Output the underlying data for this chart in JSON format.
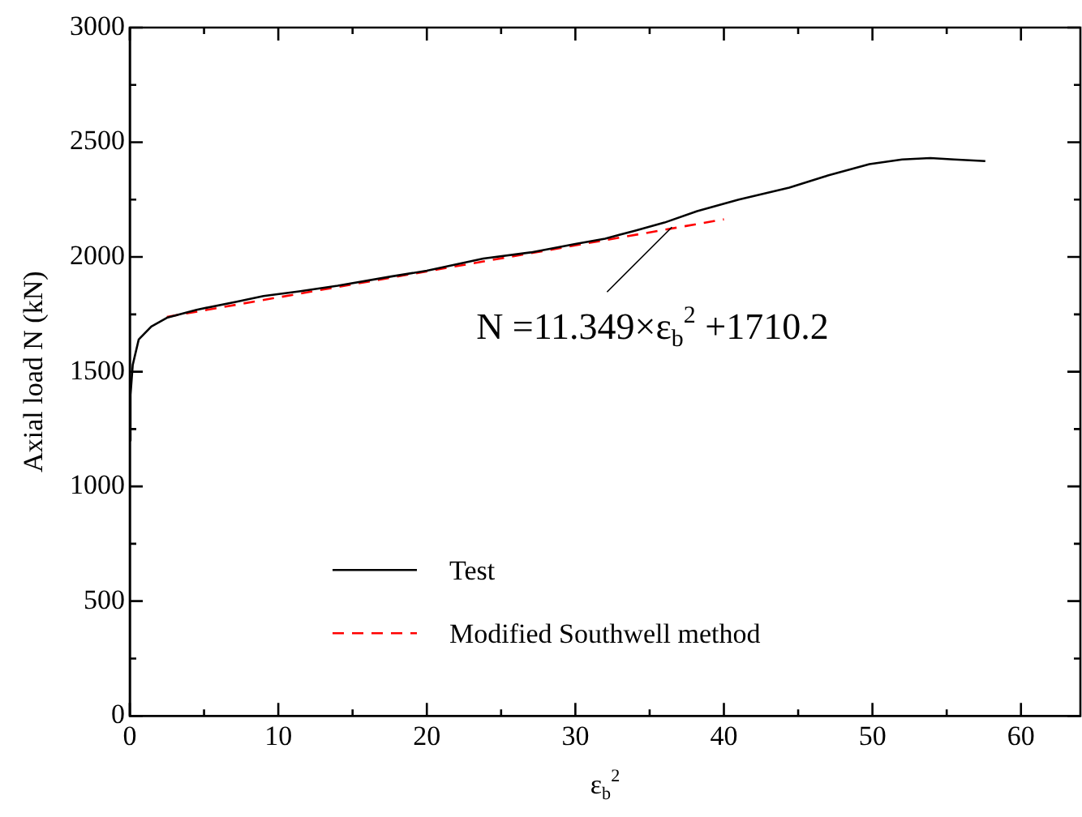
{
  "chart_data": {
    "type": "line",
    "xlabel": "ε$_{b}$$^{2}$",
    "ylabel": "Axial load N (kN)",
    "xlim": [
      0,
      64
    ],
    "ylim": [
      0,
      3000
    ],
    "xticks": [
      0,
      {
        "value": 5,
        "label": null
      },
      10,
      {
        "value": 15,
        "label": null
      },
      20,
      {
        "value": 25,
        "label": null
      },
      30,
      {
        "value": 35,
        "label": null
      },
      40,
      {
        "value": 45,
        "label": null
      },
      50,
      {
        "value": 55,
        "label": null
      },
      60
    ],
    "yticks": [
      0,
      {
        "value": 250,
        "label": null
      },
      500,
      {
        "value": 750,
        "label": null
      },
      1000,
      {
        "value": 1250,
        "label": null
      },
      1500,
      {
        "value": 1750,
        "label": null
      },
      2000,
      {
        "value": 2250,
        "label": null
      },
      2500,
      {
        "value": 2750,
        "label": null
      },
      3000
    ],
    "grid": false,
    "legend": "bottom",
    "tick_labels": "xy",
    "series": [
      {
        "name": "Test",
        "color": "#000000",
        "line_style": "solid",
        "x": [
          0,
          0.05,
          0.2,
          0.6,
          1.45,
          2.5,
          4.5,
          7.2,
          9,
          11.4,
          14,
          17.6,
          20,
          23.8,
          27,
          30,
          32,
          34,
          36,
          38.2,
          41,
          44.4,
          47,
          49.8,
          52,
          53.9,
          55.5,
          57.6
        ],
        "values": [
          1200,
          1400,
          1530,
          1640,
          1697,
          1735,
          1770,
          1805,
          1830,
          1850,
          1875,
          1915,
          1940,
          1993,
          2020,
          2057,
          2080,
          2114,
          2150,
          2200,
          2250,
          2302,
          2355,
          2405,
          2425,
          2431,
          2425,
          2418
        ]
      },
      {
        "name": "Modified Southwell method",
        "color": "#ff0000",
        "line_style": "dashed",
        "x": [
          2.5,
          40
        ],
        "values": [
          1739,
          2164
        ]
      }
    ],
    "annotations": [
      {
        "text": "N =11.349×ε$_{b}$$^{2}$ +1710.2",
        "x": 36.5,
        "y": 2130
      }
    ]
  }
}
